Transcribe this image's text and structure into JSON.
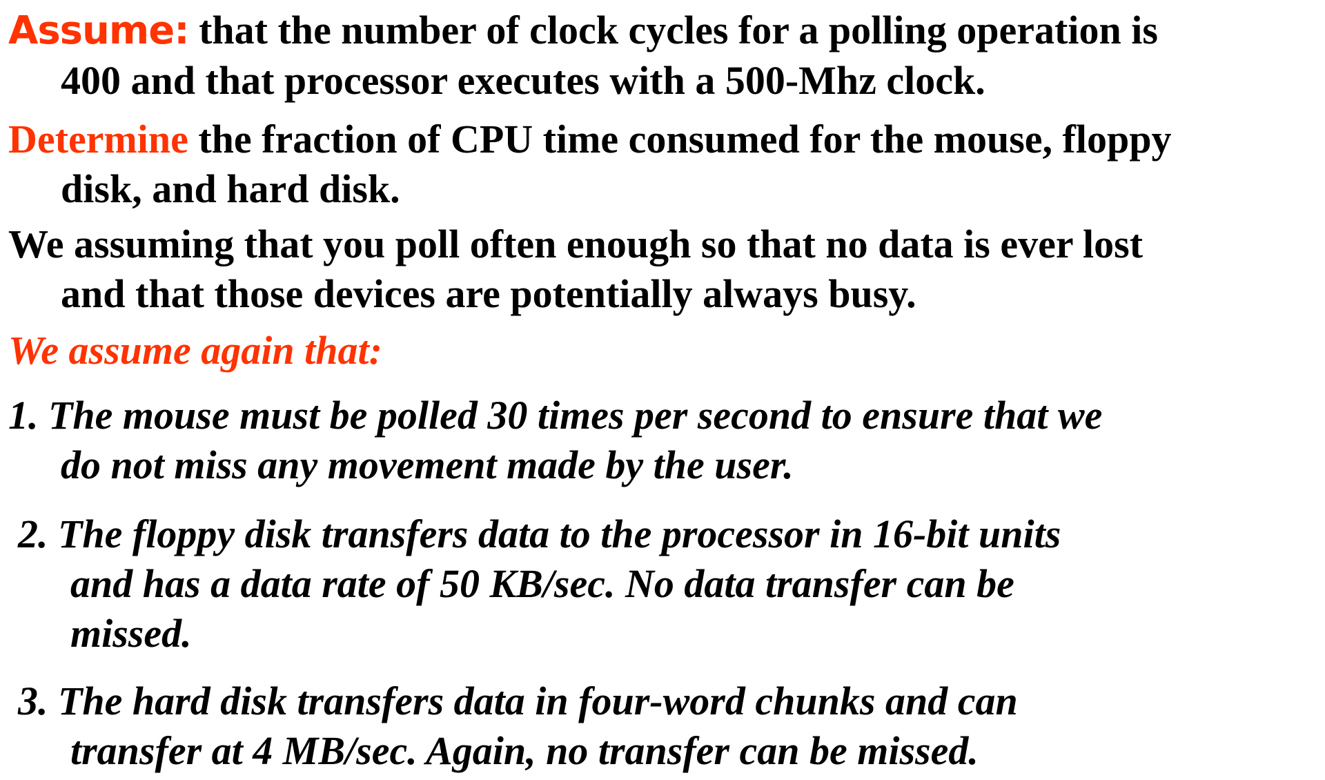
{
  "assume": {
    "label": "Assume:",
    "line1": "that the number of clock cycles for a polling operation is",
    "line2": "400 and that processor executes with a 500-Mhz clock."
  },
  "determine": {
    "label": "Determine",
    "line1": "the fraction of CPU time consumed for the mouse, floppy",
    "line2": "disk, and hard disk."
  },
  "polling_assumption": {
    "line1": "We assuming that you poll often enough so that no data is ever lost",
    "line2": "and that those devices are potentially always busy."
  },
  "assume_again": {
    "text": "We assume again that:"
  },
  "items": [
    {
      "line1": "1. The mouse must be polled 30 times per second to ensure that we",
      "line2": "do not miss any movement made by the user."
    },
    {
      "line1": "2. The floppy disk transfers data to the processor in 16-bit units",
      "line2": "and has a data rate of 50 KB/sec. No data transfer can be",
      "line3": "missed."
    },
    {
      "line1": "3. The hard disk transfers data in four-word chunks and can",
      "line2": "transfer at 4 MB/sec. Again, no transfer can be missed."
    }
  ],
  "colors": {
    "accent": "#ff3300",
    "text": "#000000",
    "background": "#ffffff"
  }
}
